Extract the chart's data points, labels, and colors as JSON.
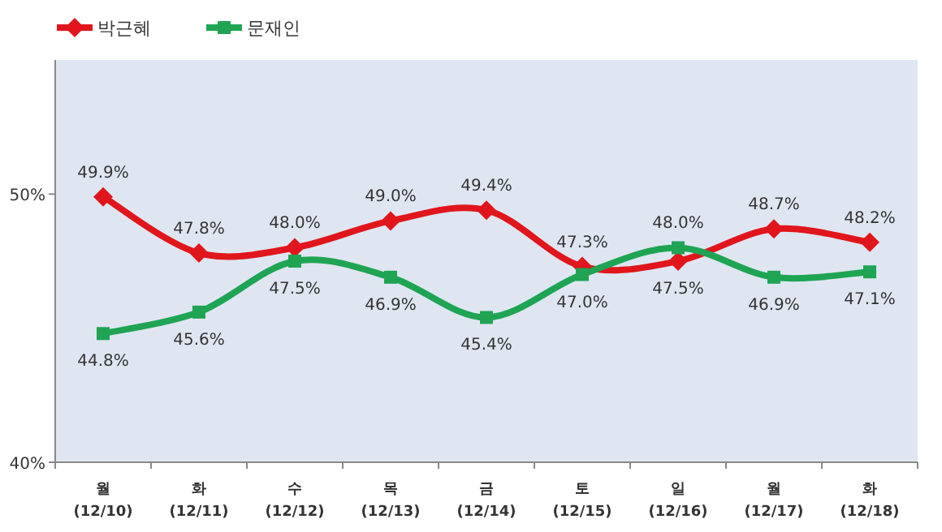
{
  "chart_data": {
    "type": "line",
    "categories": [
      "월\n(12/10)",
      "화\n(12/11)",
      "수\n(12/12)",
      "목\n(12/13)",
      "금\n(12/14)",
      "토\n(12/15)",
      "일\n(12/16)",
      "월\n(12/17)",
      "화\n(12/18)"
    ],
    "series": [
      {
        "name": "박근혜",
        "color": "#e0161c",
        "marker": "diamond",
        "values": [
          49.9,
          47.8,
          48.0,
          49.0,
          49.4,
          47.3,
          47.5,
          48.7,
          48.2
        ],
        "value_labels": [
          "49.9%",
          "47.8%",
          "48.0%",
          "49.0%",
          "49.4%",
          "47.3%",
          "47.5%",
          "48.7%",
          "48.2%"
        ]
      },
      {
        "name": "문재인",
        "color": "#1fa454",
        "marker": "square",
        "values": [
          44.8,
          45.6,
          47.5,
          46.9,
          45.4,
          47.0,
          48.0,
          46.9,
          47.1
        ],
        "value_labels": [
          "44.8%",
          "45.6%",
          "47.5%",
          "46.9%",
          "45.4%",
          "47.0%",
          "48.0%",
          "46.9%",
          "47.1%"
        ]
      }
    ],
    "ylim": [
      40,
      55
    ],
    "yticks": [
      {
        "value": 40,
        "label": "40%"
      },
      {
        "value": 50,
        "label": "50%"
      }
    ],
    "grid": false,
    "legend": "top left",
    "line_style": "solid"
  }
}
